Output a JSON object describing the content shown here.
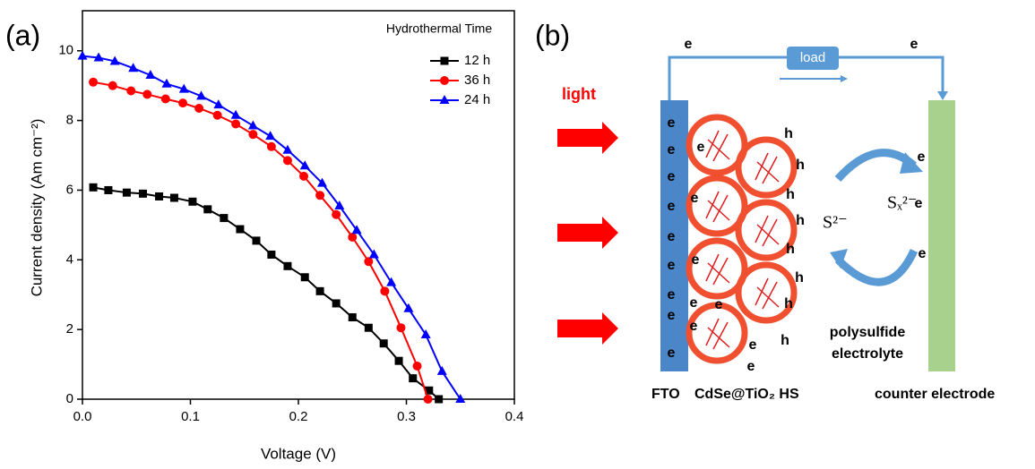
{
  "chart_data": {
    "type": "line",
    "panel_label": "(a)",
    "x_label": "Voltage (V)",
    "y_label": "Current density (Am cm⁻²)",
    "legend_title": "Hydrothermal Time",
    "legend_position": "top-right",
    "xlim": [
      0,
      0.4
    ],
    "ylim": [
      0,
      11.15
    ],
    "xticks": [
      {
        "value": 0,
        "label": "0.0"
      },
      0.1,
      0.2,
      0.3,
      0.4
    ],
    "yticks": [
      0,
      2,
      4,
      6,
      8,
      10
    ],
    "series": [
      {
        "name": "12 h",
        "color": "#000000",
        "marker": "square",
        "x": [
          0.01,
          0.024,
          0.041,
          0.056,
          0.071,
          0.085,
          0.102,
          0.116,
          0.131,
          0.146,
          0.161,
          0.175,
          0.19,
          0.206,
          0.22,
          0.235,
          0.25,
          0.265,
          0.279,
          0.293,
          0.306,
          0.321,
          0.33
        ],
        "values": [
          6.08,
          6.0,
          5.93,
          5.9,
          5.82,
          5.78,
          5.67,
          5.45,
          5.2,
          4.88,
          4.55,
          4.15,
          3.82,
          3.5,
          3.1,
          2.75,
          2.35,
          2.05,
          1.6,
          1.1,
          0.6,
          0.25,
          0
        ]
      },
      {
        "name": "36 h",
        "color": "#ff0000",
        "marker": "circle",
        "x": [
          0.01,
          0.028,
          0.045,
          0.06,
          0.077,
          0.093,
          0.108,
          0.125,
          0.142,
          0.158,
          0.175,
          0.19,
          0.205,
          0.22,
          0.235,
          0.25,
          0.265,
          0.28,
          0.295,
          0.31,
          0.32
        ],
        "values": [
          9.1,
          9.0,
          8.85,
          8.75,
          8.62,
          8.5,
          8.35,
          8.15,
          7.9,
          7.6,
          7.25,
          6.85,
          6.4,
          5.85,
          5.3,
          4.65,
          3.95,
          3.1,
          2.05,
          0.95,
          0
        ]
      },
      {
        "name": "24 h",
        "color": "#0000ff",
        "marker": "triangle",
        "x": [
          0.0,
          0.015,
          0.03,
          0.047,
          0.063,
          0.078,
          0.094,
          0.11,
          0.126,
          0.142,
          0.158,
          0.174,
          0.19,
          0.206,
          0.222,
          0.238,
          0.254,
          0.27,
          0.286,
          0.302,
          0.318,
          0.333,
          0.35
        ],
        "values": [
          9.85,
          9.8,
          9.7,
          9.5,
          9.3,
          9.05,
          8.9,
          8.7,
          8.45,
          8.15,
          7.85,
          7.55,
          7.15,
          6.7,
          6.2,
          5.55,
          4.85,
          4.15,
          3.35,
          2.6,
          1.85,
          0.8,
          0
        ]
      }
    ]
  },
  "diagram": {
    "panel_label": "(b)",
    "light": "light",
    "load": "load",
    "wire_electrons": [
      "e",
      "e"
    ],
    "fto_electrons": [
      "e",
      "e",
      "e",
      "e",
      "e",
      "e",
      "e",
      "e",
      "e"
    ],
    "particle_electrons": [
      "e",
      "e",
      "e",
      "e",
      "e",
      "e",
      "e",
      "e"
    ],
    "holes": [
      "h",
      "h",
      "h",
      "h",
      "h",
      "h",
      "h",
      "h"
    ],
    "counter_electrons": [
      "e",
      "e",
      "e"
    ],
    "sulfide": "S²⁻",
    "polysulfide_ion": "Sₓ²⁻",
    "electrolyte_lines": [
      "polysulfide",
      "electrolyte"
    ],
    "fto": "FTO",
    "photoanode": "CdSe@TiO₂ HS",
    "counter_electrode": "counter electrode"
  }
}
